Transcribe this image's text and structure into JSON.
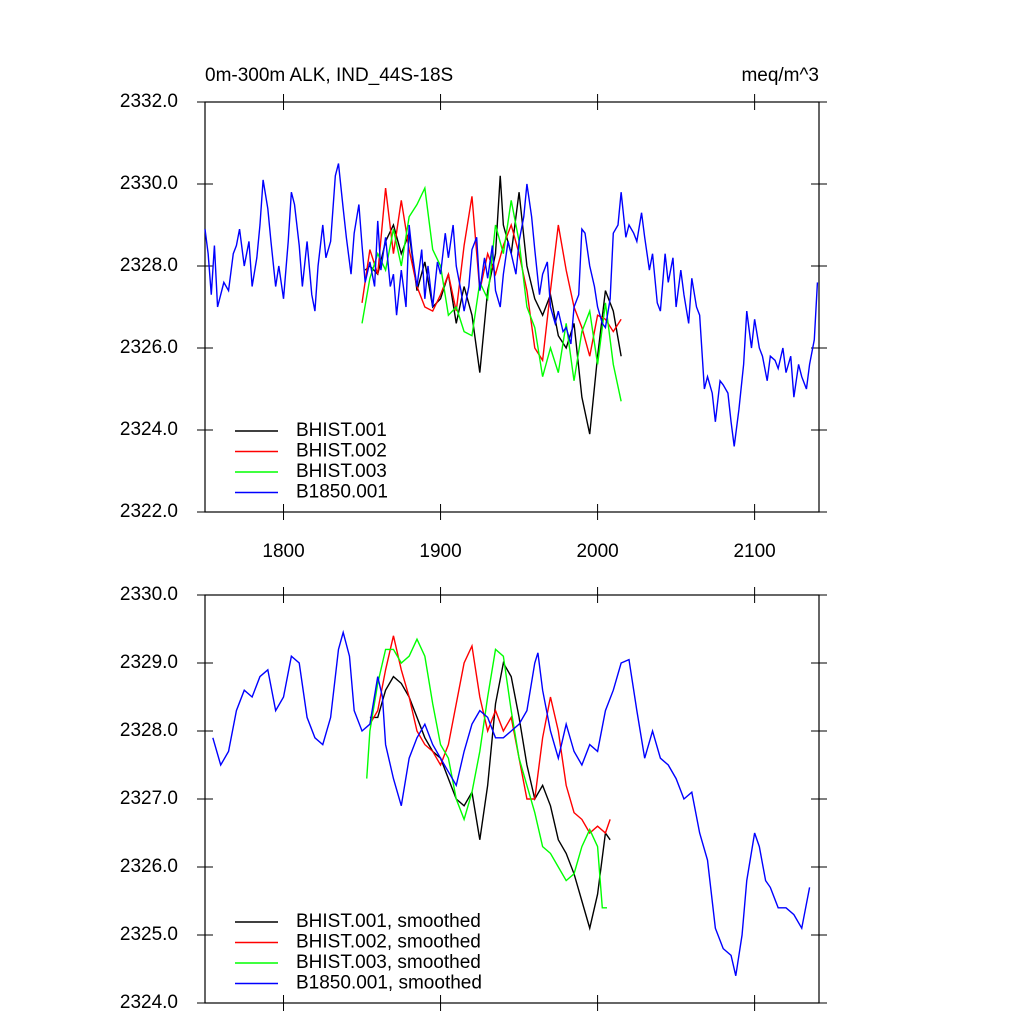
{
  "chart_data": [
    {
      "type": "line",
      "title": "0m-300m ALK, IND_44S-18S",
      "units": "meq/m^3",
      "xlim": [
        1750,
        2141
      ],
      "xticks": [
        1800,
        1900,
        2000,
        2100
      ],
      "x_tick_labels": true,
      "ylim": [
        2322,
        2332
      ],
      "yticks": [
        {
          "value": 2322,
          "label": "2322.0"
        },
        {
          "value": 2324,
          "label": "2324.0"
        },
        {
          "value": 2326,
          "label": "2326.0"
        },
        {
          "value": 2328,
          "label": "2328.0"
        },
        {
          "value": 2330,
          "label": "2330.0"
        },
        {
          "value": 2332,
          "label": "2332.0"
        }
      ],
      "legend": "lower left",
      "series": [
        {
          "name": "BHIST.001",
          "color": "#000000",
          "x": [
            1852,
            1855,
            1860,
            1865,
            1870,
            1875,
            1880,
            1885,
            1890,
            1895,
            1900,
            1905,
            1910,
            1915,
            1920,
            1925,
            1930,
            1935,
            1938,
            1940,
            1945,
            1950,
            1955,
            1960,
            1965,
            1970,
            1975,
            1980,
            1985,
            1990,
            1995,
            2000,
            2005,
            2010,
            2015
          ],
          "values": [
            2327.9,
            2328.0,
            2327.8,
            2328.6,
            2329.0,
            2328.3,
            2328.8,
            2327.4,
            2328.1,
            2327.0,
            2327.2,
            2327.8,
            2326.6,
            2327.5,
            2326.8,
            2325.4,
            2327.4,
            2328.3,
            2330.2,
            2329.0,
            2328.3,
            2329.8,
            2328.0,
            2327.2,
            2326.8,
            2327.3,
            2326.3,
            2326.0,
            2326.6,
            2324.8,
            2323.9,
            2325.8,
            2327.4,
            2326.9,
            2325.8
          ]
        },
        {
          "name": "BHIST.002",
          "color": "#ff0000",
          "x": [
            1850,
            1855,
            1860,
            1865,
            1870,
            1875,
            1880,
            1885,
            1890,
            1895,
            1900,
            1905,
            1910,
            1915,
            1920,
            1925,
            1930,
            1935,
            1940,
            1945,
            1950,
            1955,
            1960,
            1965,
            1970,
            1975,
            1980,
            1985,
            1990,
            1995,
            2000,
            2005,
            2010,
            2015
          ],
          "values": [
            2327.1,
            2328.4,
            2327.8,
            2329.9,
            2328.3,
            2329.6,
            2328.4,
            2327.5,
            2327.0,
            2326.9,
            2327.3,
            2327.8,
            2326.9,
            2328.5,
            2329.7,
            2327.4,
            2328.3,
            2327.8,
            2328.5,
            2329.0,
            2328.3,
            2327.4,
            2326.0,
            2325.7,
            2327.4,
            2329.0,
            2327.9,
            2327.0,
            2326.5,
            2325.8,
            2326.8,
            2326.7,
            2326.4,
            2326.7
          ]
        },
        {
          "name": "BHIST.003",
          "color": "#00ff00",
          "x": [
            1850,
            1855,
            1860,
            1865,
            1870,
            1875,
            1880,
            1885,
            1890,
            1895,
            1900,
            1905,
            1910,
            1915,
            1920,
            1925,
            1930,
            1935,
            1940,
            1945,
            1950,
            1955,
            1960,
            1965,
            1970,
            1975,
            1980,
            1985,
            1990,
            1995,
            2000,
            2005,
            2010,
            2015
          ],
          "values": [
            2326.6,
            2327.7,
            2328.3,
            2327.9,
            2328.9,
            2328.0,
            2329.2,
            2329.5,
            2329.9,
            2328.4,
            2328.0,
            2326.8,
            2327.0,
            2326.4,
            2326.3,
            2327.6,
            2327.2,
            2329.0,
            2328.3,
            2329.6,
            2328.6,
            2327.0,
            2326.5,
            2325.3,
            2326.0,
            2325.4,
            2326.6,
            2325.2,
            2326.4,
            2326.9,
            2325.6,
            2327.1,
            2325.6,
            2324.7
          ]
        },
        {
          "name": "B1850.001",
          "color": "#0000ff",
          "x": [
            1750,
            1752,
            1754,
            1756,
            1758,
            1762,
            1765,
            1768,
            1770,
            1772,
            1775,
            1778,
            1780,
            1783,
            1785,
            1787,
            1790,
            1792,
            1795,
            1797,
            1800,
            1803,
            1805,
            1807,
            1810,
            1812,
            1815,
            1818,
            1820,
            1822,
            1825,
            1827,
            1830,
            1833,
            1835,
            1838,
            1840,
            1843,
            1845,
            1848,
            1850,
            1852,
            1855,
            1858,
            1860,
            1862,
            1865,
            1868,
            1870,
            1872,
            1875,
            1878,
            1880,
            1882,
            1885,
            1888,
            1890,
            1892,
            1895,
            1898,
            1900,
            1903,
            1905,
            1908,
            1910,
            1913,
            1915,
            1918,
            1920,
            1923,
            1925,
            1928,
            1930,
            1933,
            1935,
            1938,
            1940,
            1943,
            1945,
            1948,
            1950,
            1953,
            1955,
            1958,
            1960,
            1963,
            1965,
            1968,
            1970,
            1973,
            1975,
            1978,
            1980,
            1983,
            1985,
            1988,
            1990,
            1992,
            1995,
            1998,
            2000,
            2003,
            2005,
            2008,
            2010,
            2013,
            2015,
            2018,
            2020,
            2023,
            2025,
            2028,
            2030,
            2033,
            2035,
            2038,
            2040,
            2043,
            2045,
            2048,
            2050,
            2053,
            2055,
            2058,
            2060,
            2063,
            2065,
            2068,
            2070,
            2073,
            2075,
            2078,
            2080,
            2083,
            2085,
            2087,
            2090,
            2093,
            2095,
            2098,
            2100,
            2103,
            2105,
            2108,
            2110,
            2113,
            2115,
            2118,
            2120,
            2123,
            2125,
            2128,
            2130,
            2133,
            2135,
            2138,
            2140
          ],
          "values": [
            2328.9,
            2328.3,
            2327.3,
            2328.5,
            2327.0,
            2327.6,
            2327.4,
            2328.3,
            2328.5,
            2328.9,
            2328.0,
            2328.6,
            2327.5,
            2328.2,
            2329.0,
            2330.1,
            2329.4,
            2328.6,
            2327.5,
            2328.0,
            2327.2,
            2328.6,
            2329.8,
            2329.5,
            2328.5,
            2327.5,
            2328.6,
            2327.3,
            2326.9,
            2328.0,
            2329.0,
            2328.2,
            2328.6,
            2330.2,
            2330.5,
            2329.4,
            2328.7,
            2327.8,
            2328.8,
            2329.5,
            2328.5,
            2327.6,
            2328.1,
            2327.5,
            2329.1,
            2327.9,
            2328.7,
            2327.5,
            2327.8,
            2326.8,
            2327.9,
            2327.0,
            2329.0,
            2328.3,
            2327.5,
            2328.4,
            2327.2,
            2328.0,
            2327.0,
            2328.1,
            2327.8,
            2328.8,
            2328.2,
            2329.0,
            2328.0,
            2327.4,
            2326.9,
            2327.5,
            2328.4,
            2328.7,
            2327.4,
            2328.2,
            2327.7,
            2328.5,
            2327.4,
            2327.0,
            2327.8,
            2328.6,
            2328.3,
            2327.8,
            2328.6,
            2329.2,
            2330.0,
            2329.2,
            2328.4,
            2327.3,
            2327.8,
            2328.1,
            2327.0,
            2326.6,
            2326.9,
            2326.4,
            2326.5,
            2326.1,
            2327.0,
            2327.3,
            2328.9,
            2328.8,
            2328.0,
            2327.5,
            2327.0,
            2326.6,
            2326.5,
            2327.2,
            2328.8,
            2329.0,
            2329.8,
            2328.7,
            2329.0,
            2328.8,
            2328.6,
            2329.3,
            2328.7,
            2327.9,
            2328.3,
            2327.1,
            2326.9,
            2328.3,
            2327.6,
            2328.2,
            2327.0,
            2327.9,
            2327.3,
            2326.6,
            2327.7,
            2327.0,
            2326.8,
            2325.0,
            2325.3,
            2324.9,
            2324.2,
            2325.2,
            2325.1,
            2324.9,
            2324.2,
            2323.6,
            2324.5,
            2325.6,
            2326.9,
            2326.0,
            2326.7,
            2326.0,
            2325.8,
            2325.2,
            2325.8,
            2325.7,
            2325.5,
            2326.0,
            2325.4,
            2325.8,
            2324.8,
            2325.6,
            2325.3,
            2325.0,
            2325.6,
            2326.2,
            2327.6
          ]
        }
      ]
    },
    {
      "type": "line",
      "xlim": [
        1750,
        2141
      ],
      "xticks": [
        1800,
        1900,
        2000,
        2100
      ],
      "x_tick_labels": false,
      "ylim": [
        2324,
        2330
      ],
      "yticks": [
        {
          "value": 2324,
          "label": "2324.0"
        },
        {
          "value": 2325,
          "label": "2325.0"
        },
        {
          "value": 2326,
          "label": "2326.0"
        },
        {
          "value": 2327,
          "label": "2327.0"
        },
        {
          "value": 2328,
          "label": "2328.0"
        },
        {
          "value": 2329,
          "label": "2329.0"
        },
        {
          "value": 2330,
          "label": "2330.0"
        }
      ],
      "legend": "lower left",
      "series": [
        {
          "name": "BHIST.001, smoothed",
          "color": "#000000",
          "x": [
            1855,
            1860,
            1865,
            1870,
            1875,
            1880,
            1885,
            1890,
            1895,
            1900,
            1905,
            1910,
            1915,
            1920,
            1925,
            1930,
            1935,
            1940,
            1945,
            1950,
            1955,
            1960,
            1965,
            1970,
            1975,
            1980,
            1985,
            1990,
            1995,
            2000,
            2005,
            2008
          ],
          "values": [
            2328.2,
            2328.2,
            2328.6,
            2328.8,
            2328.7,
            2328.5,
            2328.2,
            2327.9,
            2327.7,
            2327.6,
            2327.3,
            2327.0,
            2326.9,
            2327.1,
            2326.4,
            2327.2,
            2328.4,
            2329.0,
            2328.8,
            2328.2,
            2327.5,
            2327.0,
            2327.2,
            2326.9,
            2326.4,
            2326.2,
            2325.9,
            2325.5,
            2325.1,
            2325.6,
            2326.5,
            2326.4
          ]
        },
        {
          "name": "BHIST.002, smoothed",
          "color": "#ff0000",
          "x": [
            1855,
            1860,
            1865,
            1870,
            1875,
            1880,
            1885,
            1890,
            1895,
            1900,
            1905,
            1910,
            1915,
            1920,
            1925,
            1930,
            1935,
            1940,
            1945,
            1950,
            1955,
            1960,
            1965,
            1970,
            1975,
            1980,
            1985,
            1990,
            1995,
            2000,
            2005,
            2008
          ],
          "values": [
            2328.1,
            2328.3,
            2328.9,
            2329.4,
            2328.9,
            2328.5,
            2328.0,
            2327.8,
            2327.7,
            2327.5,
            2327.8,
            2328.4,
            2329.0,
            2329.25,
            2328.5,
            2328.0,
            2328.3,
            2328.0,
            2328.2,
            2327.6,
            2327.0,
            2327.0,
            2327.9,
            2328.5,
            2328.0,
            2327.2,
            2326.8,
            2326.7,
            2326.5,
            2326.6,
            2326.5,
            2326.7
          ]
        },
        {
          "name": "BHIST.003, smoothed",
          "color": "#00ff00",
          "x": [
            1853,
            1855,
            1860,
            1865,
            1870,
            1875,
            1880,
            1885,
            1890,
            1895,
            1900,
            1905,
            1910,
            1915,
            1920,
            1925,
            1930,
            1935,
            1940,
            1945,
            1950,
            1955,
            1960,
            1965,
            1970,
            1975,
            1980,
            1985,
            1990,
            1995,
            2000,
            2003,
            2006
          ],
          "values": [
            2327.3,
            2328.0,
            2328.7,
            2329.2,
            2329.2,
            2329.0,
            2329.1,
            2329.35,
            2329.1,
            2328.4,
            2327.8,
            2327.6,
            2327.0,
            2326.7,
            2327.1,
            2327.7,
            2328.5,
            2329.2,
            2329.1,
            2328.3,
            2327.6,
            2327.2,
            2326.8,
            2326.3,
            2326.2,
            2326.0,
            2325.8,
            2325.9,
            2326.3,
            2326.55,
            2326.3,
            2325.4,
            2325.4
          ]
        },
        {
          "name": "B1850.001, smoothed",
          "color": "#0000ff",
          "x": [
            1755,
            1760,
            1765,
            1770,
            1775,
            1780,
            1785,
            1790,
            1795,
            1800,
            1805,
            1810,
            1815,
            1820,
            1825,
            1830,
            1835,
            1838,
            1842,
            1845,
            1850,
            1855,
            1860,
            1863,
            1865,
            1870,
            1875,
            1880,
            1885,
            1890,
            1895,
            1900,
            1905,
            1910,
            1915,
            1920,
            1925,
            1930,
            1935,
            1940,
            1945,
            1950,
            1955,
            1960,
            1962,
            1965,
            1970,
            1975,
            1980,
            1985,
            1990,
            1995,
            2000,
            2005,
            2010,
            2015,
            2020,
            2025,
            2030,
            2035,
            2040,
            2045,
            2050,
            2055,
            2060,
            2065,
            2070,
            2075,
            2080,
            2085,
            2088,
            2092,
            2095,
            2100,
            2103,
            2107,
            2110,
            2115,
            2120,
            2125,
            2130,
            2135
          ],
          "values": [
            2327.9,
            2327.5,
            2327.7,
            2328.3,
            2328.6,
            2328.5,
            2328.8,
            2328.9,
            2328.3,
            2328.5,
            2329.1,
            2329.0,
            2328.2,
            2327.9,
            2327.8,
            2328.2,
            2329.2,
            2329.45,
            2329.1,
            2328.3,
            2328.0,
            2328.1,
            2328.8,
            2328.5,
            2327.8,
            2327.3,
            2326.9,
            2327.6,
            2327.9,
            2328.1,
            2327.8,
            2327.6,
            2327.4,
            2327.2,
            2327.7,
            2328.1,
            2328.3,
            2328.2,
            2327.9,
            2327.9,
            2328.0,
            2328.1,
            2328.3,
            2329.0,
            2329.15,
            2328.6,
            2328.0,
            2327.6,
            2328.1,
            2327.7,
            2327.5,
            2327.8,
            2327.7,
            2328.3,
            2328.6,
            2329.0,
            2329.05,
            2328.3,
            2327.6,
            2328.0,
            2327.6,
            2327.5,
            2327.3,
            2327.0,
            2327.1,
            2326.5,
            2326.1,
            2325.1,
            2324.8,
            2324.7,
            2324.4,
            2325.0,
            2325.8,
            2326.5,
            2326.3,
            2325.8,
            2325.7,
            2325.4,
            2325.4,
            2325.3,
            2325.1,
            2325.7
          ]
        }
      ]
    }
  ]
}
